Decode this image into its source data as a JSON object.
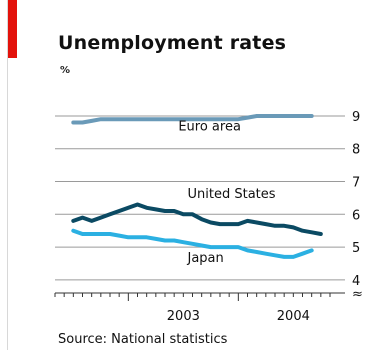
{
  "chart_data": {
    "type": "line",
    "title": "Unemployment rates",
    "unit": "%",
    "source": "Source: National statistics",
    "x_tick_labels": [
      "2003",
      "2004"
    ],
    "xlim": [
      "2002-05",
      "2004-11"
    ],
    "ylim": [
      3.6,
      9.7
    ],
    "y_tick_labels": [
      "4",
      "5",
      "6",
      "7",
      "8",
      "9"
    ],
    "y_break_marker": "≈",
    "grid": true,
    "legend": "inline labels",
    "series": [
      {
        "name": "Euro area",
        "color": "#6a9ab8",
        "x": [
          "2002-07",
          "2002-08",
          "2002-09",
          "2002-10",
          "2002-11",
          "2002-12",
          "2003-01",
          "2003-02",
          "2003-03",
          "2003-04",
          "2003-05",
          "2003-06",
          "2003-07",
          "2003-08",
          "2003-09",
          "2003-10",
          "2003-11",
          "2003-12",
          "2004-01",
          "2004-02",
          "2004-03",
          "2004-04",
          "2004-05",
          "2004-06",
          "2004-07",
          "2004-08",
          "2004-09"
        ],
        "values": [
          8.8,
          8.8,
          8.85,
          8.9,
          8.9,
          8.9,
          8.9,
          8.9,
          8.9,
          8.9,
          8.9,
          8.9,
          8.9,
          8.9,
          8.9,
          8.9,
          8.9,
          8.9,
          8.9,
          8.95,
          9.0,
          9.0,
          9.0,
          9.0,
          9.0,
          9.0,
          9.0
        ]
      },
      {
        "name": "United States",
        "color": "#0b4a63",
        "x": [
          "2002-07",
          "2002-08",
          "2002-09",
          "2002-10",
          "2002-11",
          "2002-12",
          "2003-01",
          "2003-02",
          "2003-03",
          "2003-04",
          "2003-05",
          "2003-06",
          "2003-07",
          "2003-08",
          "2003-09",
          "2003-10",
          "2003-11",
          "2003-12",
          "2004-01",
          "2004-02",
          "2004-03",
          "2004-04",
          "2004-05",
          "2004-06",
          "2004-07",
          "2004-08",
          "2004-09",
          "2004-10"
        ],
        "values": [
          5.8,
          5.9,
          5.8,
          5.9,
          6.0,
          6.1,
          6.2,
          6.3,
          6.2,
          6.15,
          6.1,
          6.1,
          6.0,
          6.0,
          5.85,
          5.75,
          5.7,
          5.7,
          5.7,
          5.8,
          5.75,
          5.7,
          5.65,
          5.65,
          5.6,
          5.5,
          5.45,
          5.4
        ]
      },
      {
        "name": "Japan",
        "color": "#2bb0e2",
        "x": [
          "2002-07",
          "2002-08",
          "2002-09",
          "2002-10",
          "2002-11",
          "2002-12",
          "2003-01",
          "2003-02",
          "2003-03",
          "2003-04",
          "2003-05",
          "2003-06",
          "2003-07",
          "2003-08",
          "2003-09",
          "2003-10",
          "2003-11",
          "2003-12",
          "2004-01",
          "2004-02",
          "2004-03",
          "2004-04",
          "2004-05",
          "2004-06",
          "2004-07",
          "2004-08",
          "2004-09"
        ],
        "values": [
          5.5,
          5.4,
          5.4,
          5.4,
          5.4,
          5.35,
          5.3,
          5.3,
          5.3,
          5.25,
          5.2,
          5.2,
          5.15,
          5.1,
          5.05,
          5.0,
          5.0,
          5.0,
          5.0,
          4.9,
          4.85,
          4.8,
          4.75,
          4.7,
          4.7,
          4.8,
          4.9
        ]
      }
    ]
  }
}
